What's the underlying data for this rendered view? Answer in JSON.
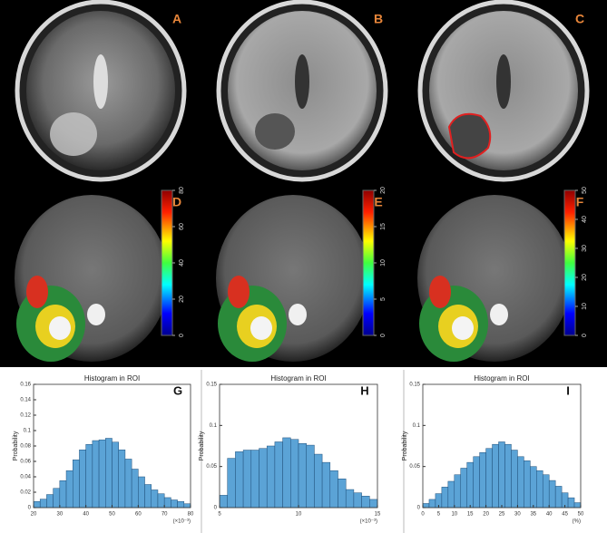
{
  "image_panels": [
    {
      "label": "A"
    },
    {
      "label": "B"
    },
    {
      "label": "C"
    },
    {
      "label": "D"
    },
    {
      "label": "E"
    },
    {
      "label": "F"
    }
  ],
  "colorbars": [
    {
      "panel": "D",
      "ticks": [
        0,
        20,
        40,
        60,
        80
      ]
    },
    {
      "panel": "E",
      "ticks": [
        0,
        5,
        10,
        15,
        20
      ]
    },
    {
      "panel": "F",
      "ticks": [
        0,
        10,
        20,
        30,
        40,
        50
      ]
    }
  ],
  "chart_data": [
    {
      "type": "histogram",
      "title": "Histogram in ROI",
      "panel_label": "G",
      "ylabel": "Probability",
      "x_unit": "(×10⁻³)",
      "color": "#5ba3d6",
      "bins": [
        20,
        22.5,
        25,
        27.5,
        30,
        32.5,
        35,
        37.5,
        40,
        42.5,
        45,
        47.5,
        50,
        52.5,
        55,
        57.5,
        60,
        62.5,
        65,
        67.5,
        70,
        72.5,
        75,
        77.5,
        80
      ],
      "values": [
        0.008,
        0.011,
        0.017,
        0.025,
        0.035,
        0.048,
        0.062,
        0.075,
        0.082,
        0.087,
        0.088,
        0.09,
        0.085,
        0.075,
        0.063,
        0.05,
        0.04,
        0.03,
        0.023,
        0.018,
        0.013,
        0.01,
        0.008,
        0.005
      ],
      "xlim": [
        20,
        80
      ],
      "xticks": [
        20,
        30,
        40,
        50,
        60,
        70,
        80
      ],
      "ylim": [
        0,
        0.16
      ],
      "yticks": [
        0,
        0.02,
        0.04,
        0.06,
        0.08,
        0.1,
        0.12,
        0.14,
        0.16
      ]
    },
    {
      "type": "histogram",
      "title": "Histogram in ROI",
      "panel_label": "H",
      "ylabel": "Probability",
      "x_unit": "(×10⁻³)",
      "color": "#5ba3d6",
      "bins": [
        5,
        5.5,
        6,
        6.5,
        7,
        7.5,
        8,
        8.5,
        9,
        9.5,
        10,
        10.5,
        11,
        11.5,
        12,
        12.5,
        13,
        13.5,
        14,
        14.5,
        15
      ],
      "values": [
        0.015,
        0.06,
        0.068,
        0.07,
        0.07,
        0.072,
        0.075,
        0.08,
        0.085,
        0.083,
        0.078,
        0.076,
        0.065,
        0.055,
        0.045,
        0.035,
        0.022,
        0.018,
        0.014,
        0.01
      ],
      "xlim": [
        5,
        15
      ],
      "xticks": [
        5,
        10,
        15
      ],
      "ylim": [
        0,
        0.15
      ],
      "yticks": [
        0,
        0.05,
        0.1,
        0.15
      ]
    },
    {
      "type": "histogram",
      "title": "Histogram in ROI",
      "panel_label": "I",
      "ylabel": "Probability",
      "x_unit": "(%)",
      "color": "#5ba3d6",
      "bins": [
        0,
        2,
        4,
        6,
        8,
        10,
        12,
        14,
        16,
        18,
        20,
        22,
        24,
        26,
        28,
        30,
        32,
        34,
        36,
        38,
        40,
        42,
        44,
        46,
        48,
        50
      ],
      "values": [
        0.005,
        0.01,
        0.017,
        0.025,
        0.032,
        0.04,
        0.048,
        0.055,
        0.062,
        0.067,
        0.072,
        0.077,
        0.08,
        0.077,
        0.07,
        0.062,
        0.057,
        0.05,
        0.045,
        0.04,
        0.033,
        0.026,
        0.018,
        0.012,
        0.006
      ],
      "xlim": [
        0,
        50
      ],
      "xticks": [
        0,
        5,
        10,
        15,
        20,
        25,
        30,
        35,
        40,
        45,
        50
      ],
      "ylim": [
        0,
        0.15
      ],
      "yticks": [
        0,
        0.05,
        0.1,
        0.15
      ]
    }
  ]
}
